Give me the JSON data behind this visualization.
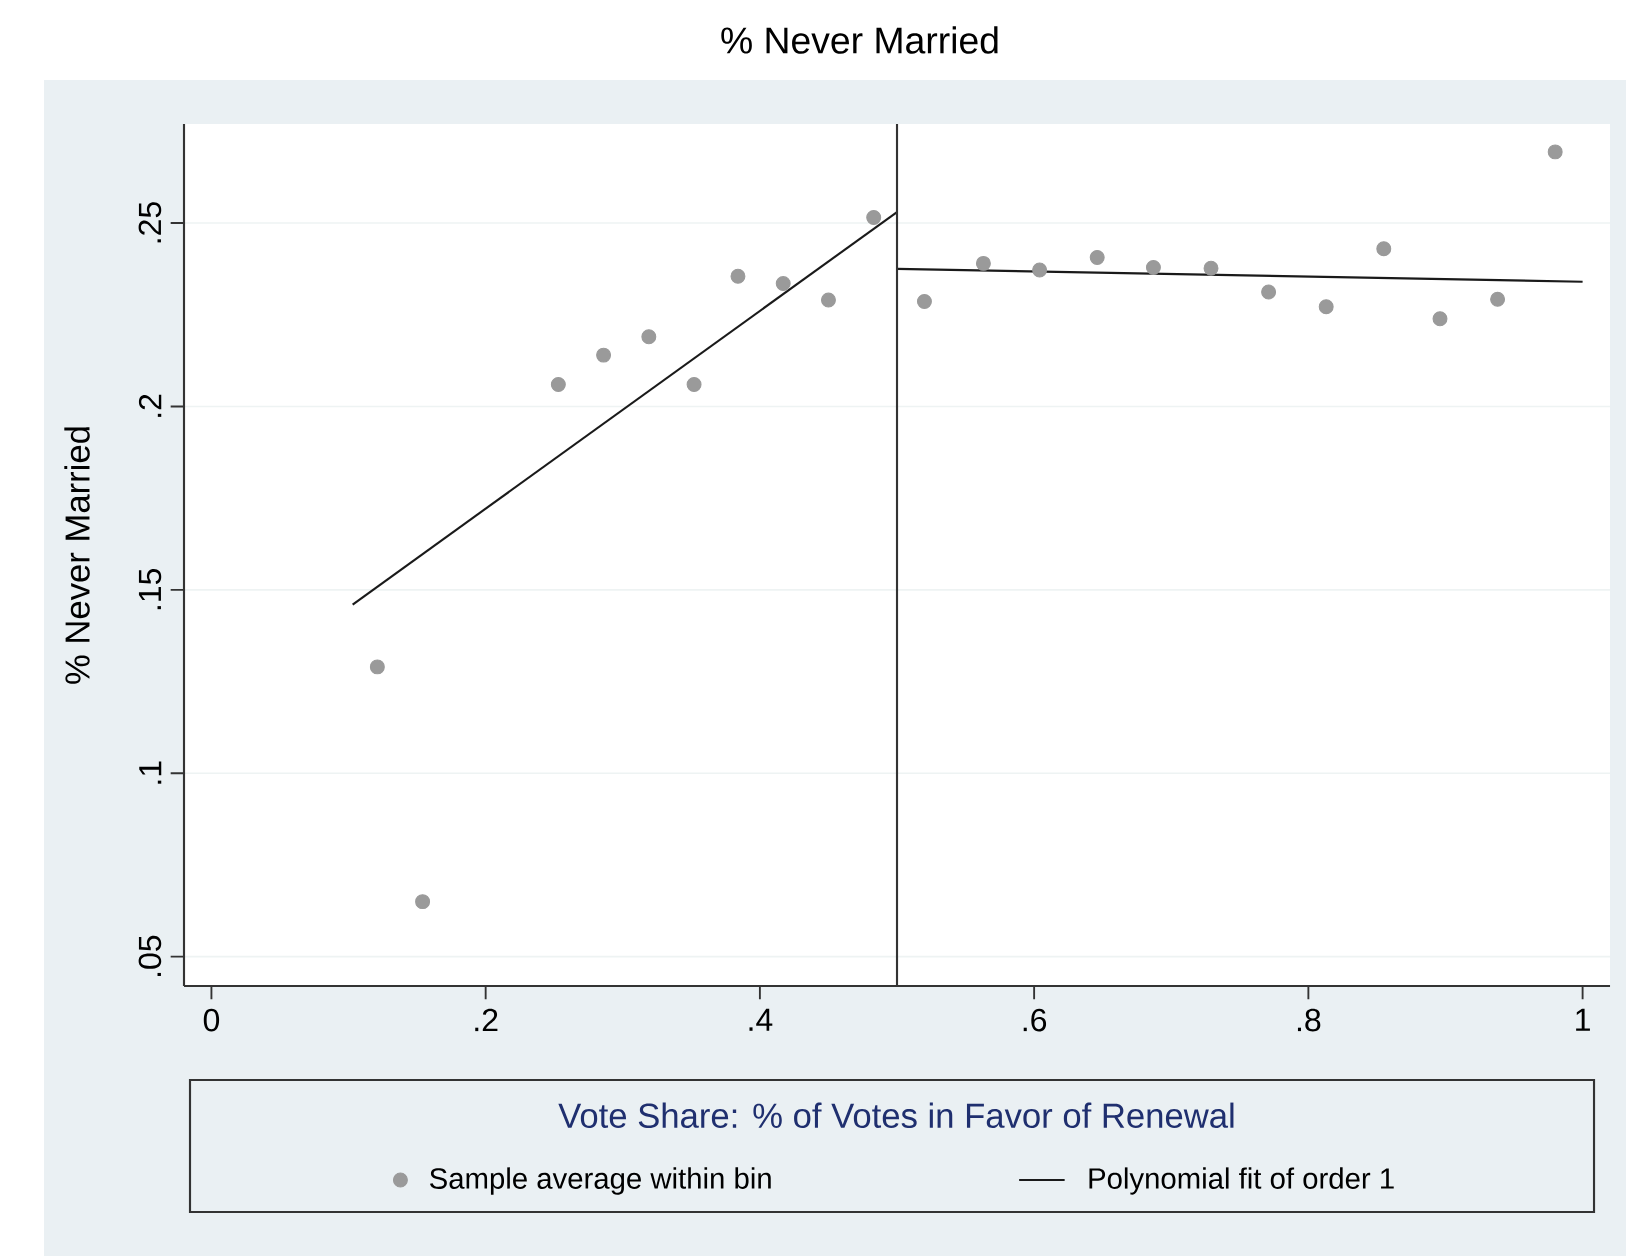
{
  "chart_data": {
    "type": "scatter",
    "title": "% Never Married",
    "xlabel": "Vote Share: % of Votes in Favor of Renewal",
    "ylabel": "% Never Married",
    "xlim": [
      -0.02,
      1.02
    ],
    "ylim": [
      0.042,
      0.277
    ],
    "xticks": [
      0,
      {
        "value": 0.2,
        "label": ".2"
      },
      {
        "value": 0.4,
        "label": ".4"
      },
      {
        "value": 0.6,
        "label": ".6"
      },
      {
        "value": 0.8,
        "label": ".8"
      },
      1
    ],
    "yticks": [
      {
        "value": 0.05,
        "label": ".05"
      },
      {
        "value": 0.1,
        "label": ".1"
      },
      {
        "value": 0.15,
        "label": ".15"
      },
      {
        "value": 0.2,
        "label": ".2"
      },
      {
        "value": 0.25,
        "label": ".25"
      }
    ],
    "grid": "y",
    "legend": "bottom",
    "ref_lines": [
      {
        "axis": "x",
        "value": 0.5,
        "color": "#333333"
      }
    ],
    "series": [
      {
        "name": "Sample average within bin",
        "marker": "circle",
        "color": "#9a9a9a",
        "x": [
          0.121,
          0.154,
          0.253,
          0.286,
          0.319,
          0.352,
          0.384,
          0.417,
          0.45,
          0.483,
          0.52,
          0.563,
          0.604,
          0.646,
          0.687,
          0.729,
          0.771,
          0.813,
          0.855,
          0.896,
          0.938,
          0.98
        ],
        "values": [
          0.129,
          0.065,
          0.206,
          0.214,
          0.219,
          0.206,
          0.2355,
          0.2335,
          0.229,
          0.2515,
          0.2286,
          0.239,
          0.2372,
          0.2406,
          0.2379,
          0.2377,
          0.2312,
          0.2272,
          0.243,
          0.2239,
          0.2292,
          0.2694
        ]
      },
      {
        "name": "Polynomial fit of order 1",
        "type": "line",
        "marker": "none",
        "color": "#1a1a1a",
        "x": [
          0.103,
          0.5
        ],
        "values": [
          0.146,
          0.253
        ]
      },
      {
        "type": "line",
        "marker": "none",
        "color": "#1a1a1a",
        "x": [
          0.5,
          1.0
        ],
        "values": [
          0.2375,
          0.234
        ]
      }
    ]
  }
}
